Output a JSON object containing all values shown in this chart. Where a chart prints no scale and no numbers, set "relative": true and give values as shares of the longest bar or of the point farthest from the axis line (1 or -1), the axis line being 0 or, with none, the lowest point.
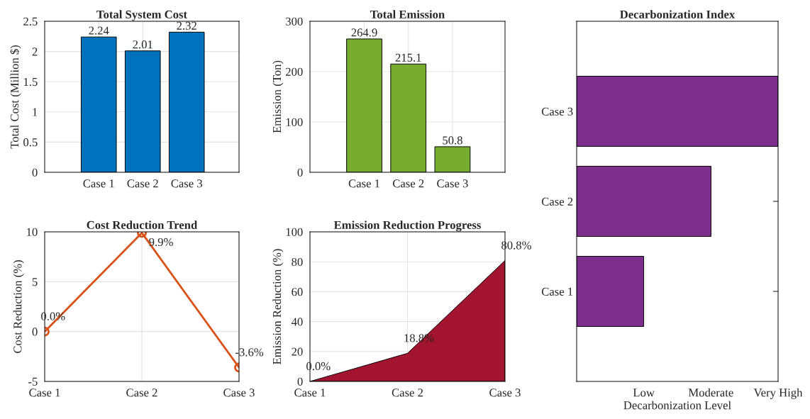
{
  "chart_data": [
    {
      "type": "bar",
      "title": "Total System Cost",
      "ylabel": "Total Cost (Million $)",
      "categories": [
        "Case 1",
        "Case 2",
        "Case 3"
      ],
      "values": [
        2.24,
        2.01,
        2.32
      ],
      "color": "#0072bd",
      "ylim": [
        0,
        2.5
      ],
      "yticks": [
        0,
        0.5,
        1,
        1.5,
        2,
        2.5
      ],
      "grid": true,
      "data_labels": true
    },
    {
      "type": "bar",
      "title": "Total Emission",
      "ylabel": "Emission (Ton)",
      "categories": [
        "Case 1",
        "Case 2",
        "Case 3"
      ],
      "values": [
        264.9,
        215.1,
        50.8
      ],
      "color": "#77ac30",
      "ylim": [
        0,
        300
      ],
      "yticks": [
        0,
        100,
        200,
        300
      ],
      "grid": true,
      "data_labels": true
    },
    {
      "type": "bar",
      "orientation": "horizontal",
      "title": "Decarbonization Index",
      "xlabel": "Decarbonization Level",
      "categories": [
        "Case 3",
        "Case 2",
        "Case 1"
      ],
      "values": [
        1,
        0.667,
        0.333
      ],
      "relative": true,
      "color": "#7e2f8e",
      "annotations": [
        "Low",
        "Moderate",
        "Very High"
      ],
      "grid": false
    },
    {
      "type": "line",
      "title": "Cost Reduction Trend",
      "ylabel": "Cost Reduction (%)",
      "categories": [
        "Case 1",
        "Case 2",
        "Case 3"
      ],
      "values": [
        0.0,
        9.9,
        -3.6
      ],
      "value_labels": [
        "0.0%",
        "9.9%",
        "-3.6%"
      ],
      "color": "#d95319",
      "marker": "circle",
      "ylim": [
        -5,
        10
      ],
      "yticks": [
        -5,
        0,
        5,
        10
      ],
      "grid": true
    },
    {
      "type": "area",
      "title": "Emission Reduction Progress",
      "ylabel": "Emission Reduction (%)",
      "categories": [
        "Case 1",
        "Case 2",
        "Case 3"
      ],
      "values": [
        0.0,
        18.8,
        80.8
      ],
      "value_labels": [
        "0.0%",
        "18.8%",
        "80.8%"
      ],
      "color": "#a2142f",
      "ylim": [
        0,
        100
      ],
      "yticks": [
        0,
        20,
        40,
        60,
        80,
        100
      ],
      "grid": true
    }
  ]
}
